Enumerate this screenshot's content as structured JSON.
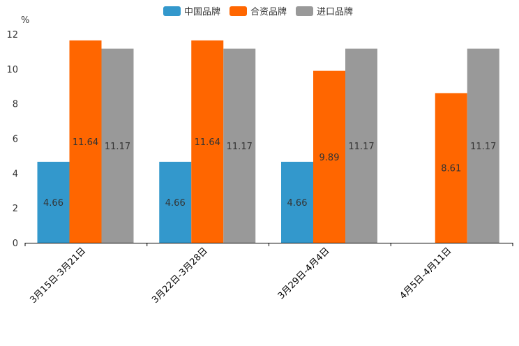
{
  "chart_data": {
    "type": "bar",
    "unit_label": "%",
    "categories": [
      "3月15日-3月21日",
      "3月22日-3月28日",
      "3月29日-4月4日",
      "4月5日-4月11日"
    ],
    "series": [
      {
        "name": "中国品牌",
        "color": "#3398cc",
        "values": [
          4.66,
          4.66,
          4.66,
          null
        ]
      },
      {
        "name": "合资品牌",
        "color": "#ff6600",
        "values": [
          11.64,
          11.64,
          9.89,
          8.61
        ]
      },
      {
        "name": "进口品牌",
        "color": "#999999",
        "values": [
          11.17,
          11.17,
          11.17,
          11.17
        ]
      }
    ],
    "ylim": [
      0,
      12
    ],
    "yticks": [
      0,
      2,
      4,
      6,
      8,
      10,
      12
    ],
    "legend_position": "top-center",
    "grid": false
  }
}
